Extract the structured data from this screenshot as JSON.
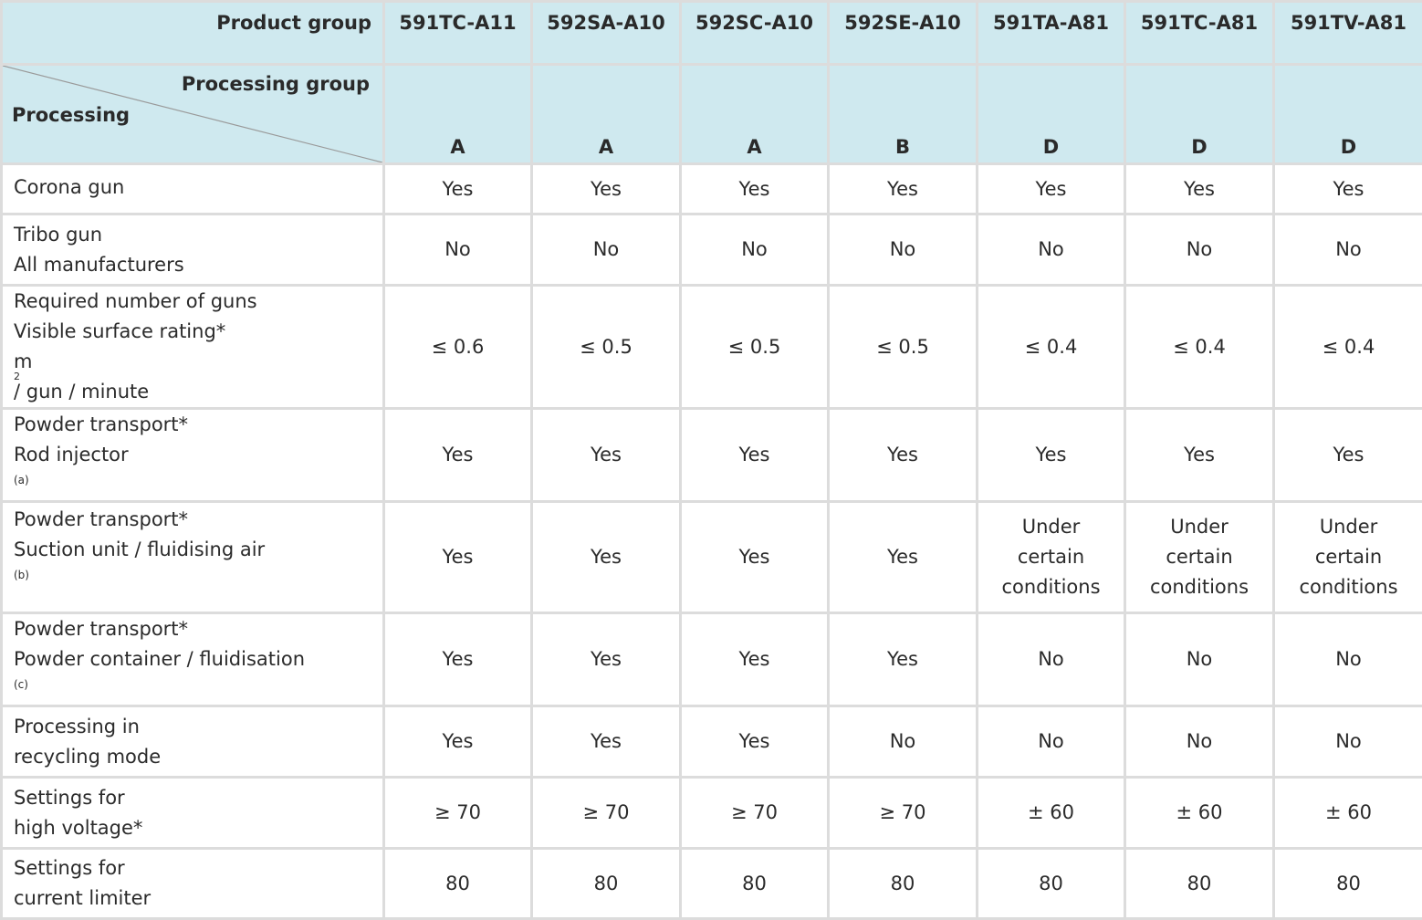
{
  "header": {
    "product_group_label": "Product group",
    "processing_group_label": "Processing group",
    "processing_label": "Processing",
    "products": [
      {
        "name": "591TC-A11",
        "group": "A"
      },
      {
        "name": "592SA-A10",
        "group": "A"
      },
      {
        "name": "592SC-A10",
        "group": "A"
      },
      {
        "name": "592SE-A10",
        "group": "B"
      },
      {
        "name": "591TA-A81",
        "group": "D"
      },
      {
        "name": "591TC-A81",
        "group": "D"
      },
      {
        "name": "591TV-A81",
        "group": "D"
      }
    ]
  },
  "rows": [
    {
      "label": [
        "Corona gun"
      ],
      "values": [
        "Yes",
        "Yes",
        "Yes",
        "Yes",
        "Yes",
        "Yes",
        "Yes"
      ]
    },
    {
      "label": [
        "Tribo gun",
        "All manufacturers"
      ],
      "values": [
        "No",
        "No",
        "No",
        "No",
        "No",
        "No",
        "No"
      ]
    },
    {
      "label": [
        "Required number of guns",
        "Visible surface rating*",
        "m",
        "2",
        "/ gun / minute"
      ],
      "values": [
        "≤ 0.6",
        "≤ 0.5",
        "≤ 0.5",
        "≤ 0.5",
        "≤ 0.4",
        "≤ 0.4",
        "≤ 0.4"
      ]
    },
    {
      "label": [
        "Powder transport*",
        "Rod injector",
        "(a)"
      ],
      "values": [
        "Yes",
        "Yes",
        "Yes",
        "Yes",
        "Yes",
        "Yes",
        "Yes"
      ]
    },
    {
      "label": [
        "Powder transport*",
        "Suction unit / fluidising air",
        "(b)"
      ],
      "values": [
        "Yes",
        "Yes",
        "Yes",
        "Yes",
        "Under certain conditions",
        "Under certain conditions",
        "Under certain conditions"
      ]
    },
    {
      "label": [
        "Powder transport*",
        "Powder container / fluidisation",
        "(c)"
      ],
      "values": [
        "Yes",
        "Yes",
        "Yes",
        "Yes",
        "No",
        "No",
        "No"
      ]
    },
    {
      "label": [
        "Processing in",
        "recycling mode"
      ],
      "values": [
        "Yes",
        "Yes",
        "Yes",
        "No",
        "No",
        "No",
        "No"
      ]
    },
    {
      "label": [
        "Settings for",
        "high voltage*"
      ],
      "values": [
        "≥ 70",
        "≥ 70",
        "≥ 70",
        "≥ 70",
        "± 60",
        "± 60",
        "± 60"
      ]
    },
    {
      "label": [
        "Settings for",
        "current limiter"
      ],
      "values": [
        "80",
        "80",
        "80",
        "80",
        "80",
        "80",
        "80"
      ]
    }
  ]
}
